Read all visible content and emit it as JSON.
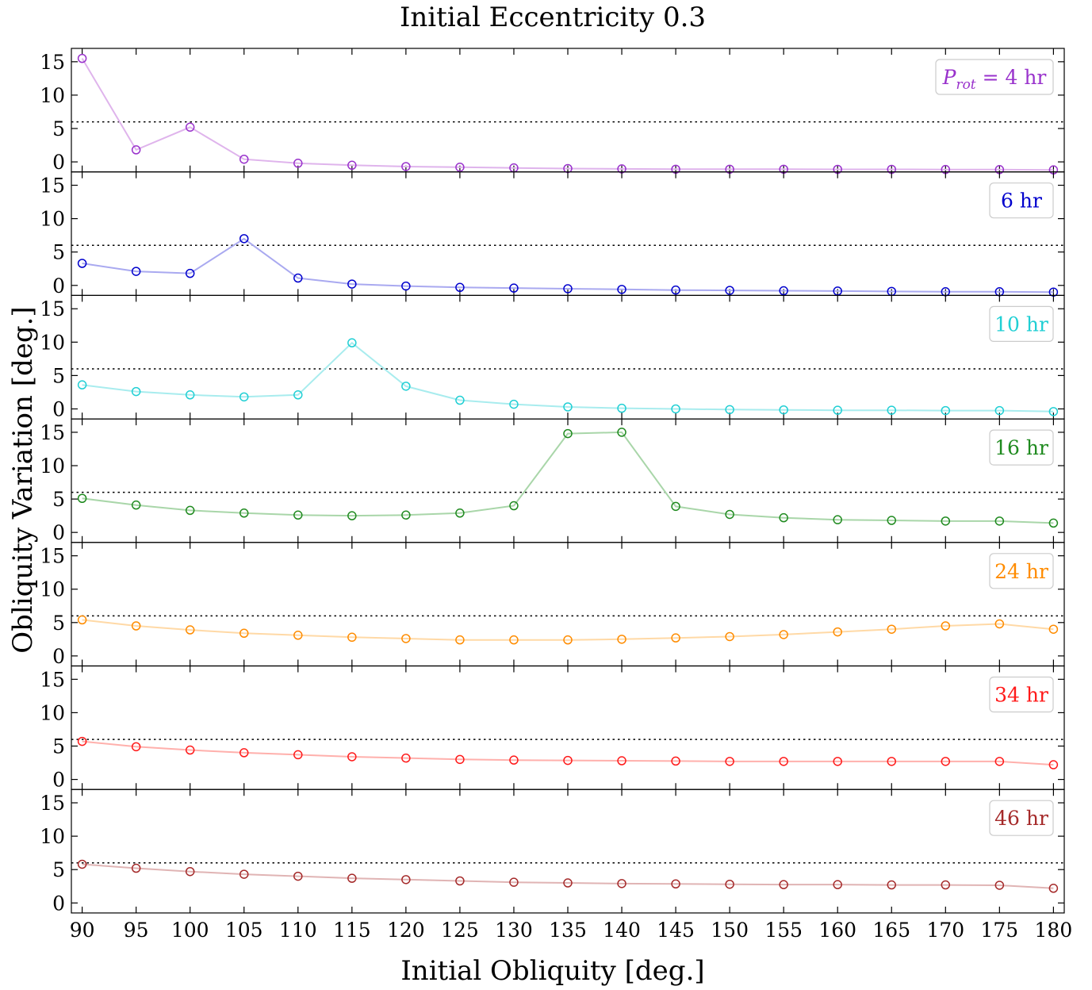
{
  "chart_data": {
    "type": "line",
    "title": "Initial Eccentricity 0.3",
    "xlabel": "Initial Obliquity [deg.]",
    "ylabel": "Obliquity Variation [deg.]",
    "x": [
      90,
      95,
      100,
      105,
      110,
      115,
      120,
      125,
      130,
      135,
      140,
      145,
      150,
      155,
      160,
      165,
      170,
      175,
      180
    ],
    "xlim": [
      89,
      181
    ],
    "ylim": [
      -1.5,
      17
    ],
    "yticks": [
      0,
      5,
      10,
      15
    ],
    "reference_line": {
      "y": 6,
      "style": "dotted",
      "color": "#000000"
    },
    "legend_position": "top-right",
    "grid": false,
    "panels": [
      {
        "label": "P_rot = 4 hr",
        "label_parts": {
          "symbol": "P",
          "subscript": "rot",
          "rest": " = 4 hr"
        },
        "color": "#9932cc",
        "line_color": "#dfb4ec",
        "values": [
          15.5,
          1.8,
          5.2,
          0.4,
          -0.2,
          -0.5,
          -0.7,
          -0.8,
          -0.9,
          -1.0,
          -1.05,
          -1.1,
          -1.1,
          -1.1,
          -1.12,
          -1.12,
          -1.14,
          -1.15,
          -1.2
        ]
      },
      {
        "label": "6 hr",
        "color": "#0000cd",
        "line_color": "#a9a9f0",
        "values": [
          3.3,
          2.1,
          1.8,
          7.0,
          1.1,
          0.2,
          -0.1,
          -0.3,
          -0.4,
          -0.5,
          -0.6,
          -0.7,
          -0.75,
          -0.8,
          -0.85,
          -0.9,
          -0.95,
          -0.95,
          -1.0
        ]
      },
      {
        "label": "10 hr",
        "color": "#20cfd4",
        "line_color": "#a8ecee",
        "values": [
          3.6,
          2.6,
          2.1,
          1.8,
          2.1,
          9.9,
          3.4,
          1.3,
          0.7,
          0.3,
          0.1,
          0.0,
          -0.1,
          -0.15,
          -0.2,
          -0.2,
          -0.25,
          -0.25,
          -0.4
        ]
      },
      {
        "label": "16 hr",
        "color": "#1f8a1f",
        "line_color": "#a9d6a9",
        "values": [
          5.1,
          4.1,
          3.3,
          2.9,
          2.6,
          2.5,
          2.6,
          2.9,
          4.0,
          14.8,
          15.0,
          3.9,
          2.7,
          2.2,
          1.9,
          1.8,
          1.7,
          1.7,
          1.4
        ]
      },
      {
        "label": "24 hr",
        "color": "#ff8c00",
        "line_color": "#ffd9a6",
        "values": [
          5.4,
          4.5,
          3.9,
          3.4,
          3.1,
          2.8,
          2.6,
          2.4,
          2.4,
          2.4,
          2.5,
          2.7,
          2.9,
          3.2,
          3.6,
          4.0,
          4.5,
          4.8,
          4.0
        ]
      },
      {
        "label": "34 hr",
        "color": "#ff1a1a",
        "line_color": "#ffb0ac",
        "values": [
          5.7,
          4.9,
          4.4,
          4.0,
          3.7,
          3.4,
          3.2,
          3.0,
          2.9,
          2.85,
          2.8,
          2.75,
          2.7,
          2.7,
          2.7,
          2.7,
          2.7,
          2.7,
          2.2
        ]
      },
      {
        "label": "46 hr",
        "color": "#a52a2a",
        "line_color": "#e0b4b4",
        "values": [
          5.8,
          5.2,
          4.7,
          4.3,
          4.0,
          3.7,
          3.5,
          3.3,
          3.1,
          3.0,
          2.9,
          2.85,
          2.8,
          2.75,
          2.75,
          2.7,
          2.7,
          2.65,
          2.2
        ]
      }
    ]
  }
}
